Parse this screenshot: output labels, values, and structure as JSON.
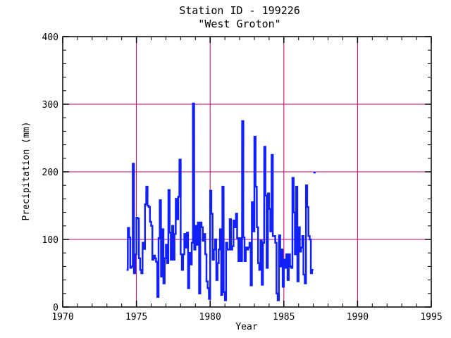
{
  "chart_data": {
    "type": "line",
    "title": "Station ID - 199226",
    "subtitle": "\"West Groton\"",
    "xlabel": "Year",
    "ylabel": "Precipitation (mm)",
    "xlim": [
      1970,
      1995
    ],
    "ylim": [
      0,
      400
    ],
    "xticks": [
      1970,
      1975,
      1980,
      1985,
      1990,
      1995
    ],
    "yticks": [
      0,
      100,
      200,
      300,
      400
    ],
    "grid": true,
    "series_color": "#1020ff",
    "grid_color": "#c0006a",
    "series": [
      {
        "values": [
          [
            1974.33,
            55
          ],
          [
            1974.42,
            117
          ],
          [
            1974.5,
            103
          ],
          [
            1974.58,
            58
          ],
          [
            1974.67,
            60
          ],
          [
            1974.75,
            212
          ],
          [
            1974.83,
            50
          ],
          [
            1974.92,
            78
          ],
          [
            1975.0,
            132
          ],
          [
            1975.08,
            131
          ],
          [
            1975.17,
            72
          ],
          [
            1975.25,
            55
          ],
          [
            1975.33,
            50
          ],
          [
            1975.42,
            95
          ],
          [
            1975.5,
            86
          ],
          [
            1975.58,
            152
          ],
          [
            1975.67,
            178
          ],
          [
            1975.75,
            150
          ],
          [
            1975.83,
            148
          ],
          [
            1975.92,
            126
          ],
          [
            1976.0,
            120
          ],
          [
            1976.08,
            70
          ],
          [
            1976.17,
            76
          ],
          [
            1976.25,
            72
          ],
          [
            1976.33,
            67
          ],
          [
            1976.42,
            15
          ],
          [
            1976.5,
            102
          ],
          [
            1976.58,
            158
          ],
          [
            1976.67,
            45
          ],
          [
            1976.75,
            115
          ],
          [
            1976.83,
            35
          ],
          [
            1976.92,
            72
          ],
          [
            1977.0,
            92
          ],
          [
            1977.08,
            65
          ],
          [
            1977.17,
            173
          ],
          [
            1977.25,
            110
          ],
          [
            1977.33,
            70
          ],
          [
            1977.42,
            120
          ],
          [
            1977.5,
            70
          ],
          [
            1977.58,
            108
          ],
          [
            1977.67,
            160
          ],
          [
            1977.75,
            130
          ],
          [
            1977.83,
            163
          ],
          [
            1977.92,
            218
          ],
          [
            1978.0,
            78
          ],
          [
            1978.08,
            55
          ],
          [
            1978.17,
            78
          ],
          [
            1978.25,
            108
          ],
          [
            1978.33,
            88
          ],
          [
            1978.42,
            110
          ],
          [
            1978.5,
            28
          ],
          [
            1978.58,
            80
          ],
          [
            1978.67,
            63
          ],
          [
            1978.75,
            95
          ],
          [
            1978.83,
            301
          ],
          [
            1978.92,
            85
          ],
          [
            1979.0,
            120
          ],
          [
            1979.08,
            92
          ],
          [
            1979.17,
            125
          ],
          [
            1979.25,
            20
          ],
          [
            1979.33,
            125
          ],
          [
            1979.42,
            118
          ],
          [
            1979.5,
            98
          ],
          [
            1979.58,
            108
          ],
          [
            1979.67,
            78
          ],
          [
            1979.75,
            38
          ],
          [
            1979.83,
            28
          ],
          [
            1979.92,
            12
          ],
          [
            1980.0,
            172
          ],
          [
            1980.08,
            138
          ],
          [
            1980.17,
            70
          ],
          [
            1980.25,
            85
          ],
          [
            1980.33,
            100
          ],
          [
            1980.42,
            40
          ],
          [
            1980.5,
            65
          ],
          [
            1980.58,
            85
          ],
          [
            1980.67,
            115
          ],
          [
            1980.75,
            18
          ],
          [
            1980.83,
            178
          ],
          [
            1980.92,
            22
          ],
          [
            1981.0,
            10
          ],
          [
            1981.08,
            95
          ],
          [
            1981.17,
            85
          ],
          [
            1981.25,
            85
          ],
          [
            1981.33,
            130
          ],
          [
            1981.42,
            85
          ],
          [
            1981.5,
            90
          ],
          [
            1981.58,
            128
          ],
          [
            1981.67,
            118
          ],
          [
            1981.75,
            138
          ],
          [
            1981.83,
            102
          ],
          [
            1981.92,
            68
          ],
          [
            1982.0,
            102
          ],
          [
            1982.08,
            68
          ],
          [
            1982.17,
            275
          ],
          [
            1982.25,
            103
          ],
          [
            1982.33,
            68
          ],
          [
            1982.42,
            88
          ],
          [
            1982.5,
            85
          ],
          [
            1982.58,
            88
          ],
          [
            1982.67,
            95
          ],
          [
            1982.75,
            32
          ],
          [
            1982.83,
            155
          ],
          [
            1982.92,
            112
          ],
          [
            1983.0,
            252
          ],
          [
            1983.08,
            178
          ],
          [
            1983.17,
            118
          ],
          [
            1983.25,
            65
          ],
          [
            1983.33,
            55
          ],
          [
            1983.42,
            98
          ],
          [
            1983.5,
            33
          ],
          [
            1983.58,
            95
          ],
          [
            1983.67,
            237
          ],
          [
            1983.75,
            165
          ],
          [
            1983.83,
            58
          ],
          [
            1983.92,
            168
          ],
          [
            1984.0,
            145
          ],
          [
            1984.08,
            112
          ],
          [
            1984.17,
            225
          ],
          [
            1984.25,
            105
          ],
          [
            1984.33,
            105
          ],
          [
            1984.42,
            95
          ],
          [
            1984.5,
            20
          ],
          [
            1984.58,
            10
          ],
          [
            1984.67,
            106
          ],
          [
            1984.75,
            60
          ],
          [
            1984.83,
            85
          ],
          [
            1984.92,
            30
          ],
          [
            1985.0,
            70
          ],
          [
            1985.08,
            58
          ],
          [
            1985.17,
            78
          ],
          [
            1985.25,
            40
          ],
          [
            1985.33,
            78
          ],
          [
            1985.42,
            60
          ],
          [
            1985.5,
            58
          ],
          [
            1985.58,
            191
          ],
          [
            1985.67,
            140
          ],
          [
            1985.75,
            78
          ],
          [
            1985.83,
            178
          ],
          [
            1985.92,
            38
          ],
          [
            1986.0,
            118
          ],
          [
            1986.08,
            82
          ],
          [
            1986.17,
            88
          ],
          [
            1986.25,
            105
          ],
          [
            1986.33,
            48
          ],
          [
            1986.42,
            35
          ],
          [
            1986.5,
            180
          ],
          [
            1986.58,
            148
          ],
          [
            1986.67,
            105
          ],
          [
            1986.75,
            100
          ],
          [
            1986.83,
            50
          ],
          [
            1986.92,
            55
          ]
        ]
      },
      {
        "values": [
          [
            1987.0,
            199
          ],
          [
            1987.08,
            199
          ]
        ]
      }
    ]
  }
}
